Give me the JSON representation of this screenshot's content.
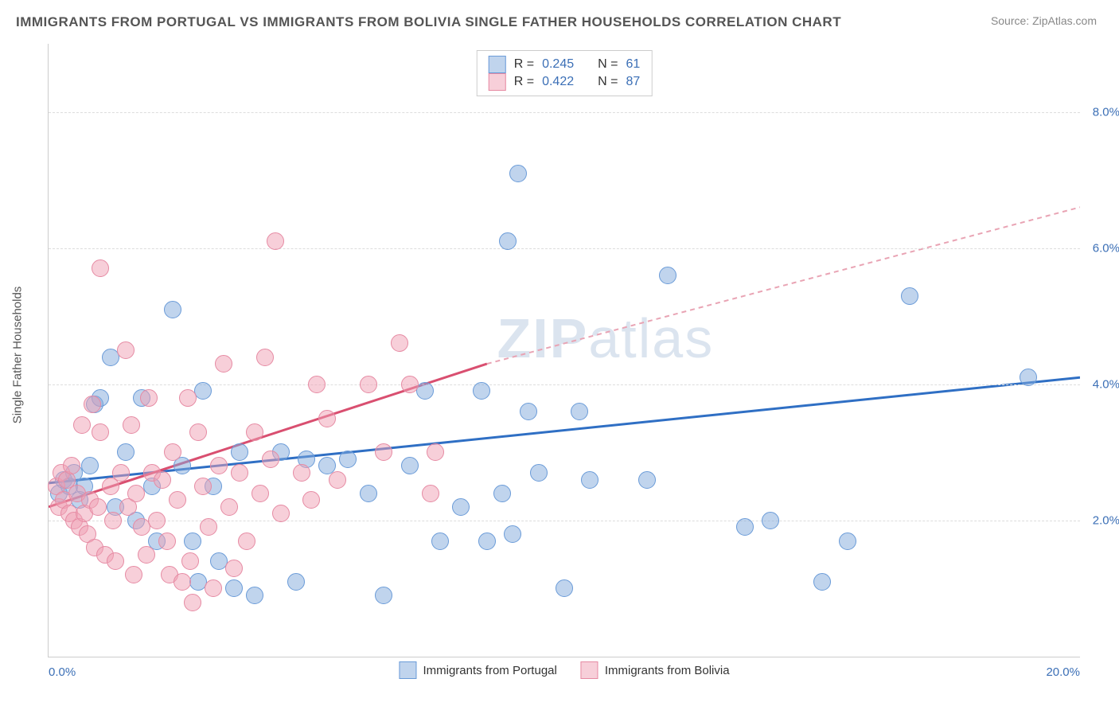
{
  "title": "IMMIGRANTS FROM PORTUGAL VS IMMIGRANTS FROM BOLIVIA SINGLE FATHER HOUSEHOLDS CORRELATION CHART",
  "source_label": "Source: ZipAtlas.com",
  "ylabel": "Single Father Households",
  "watermark_first": "ZIP",
  "watermark_second": "atlas",
  "chart": {
    "type": "scatter",
    "xlim": [
      0,
      20
    ],
    "ylim": [
      0,
      9
    ],
    "x_ticks": [
      {
        "v": 0,
        "label": "0.0%"
      },
      {
        "v": 20,
        "label": "20.0%"
      }
    ],
    "y_ticks": [
      {
        "v": 2,
        "label": "2.0%"
      },
      {
        "v": 4,
        "label": "4.0%"
      },
      {
        "v": 6,
        "label": "6.0%"
      },
      {
        "v": 8,
        "label": "8.0%"
      }
    ],
    "grid_color": "#dddddd",
    "background_color": "#ffffff",
    "marker_radius": 10,
    "colors": {
      "blue_fill": "rgba(130,170,220,0.5)",
      "blue_stroke": "#6a9bd8",
      "pink_fill": "rgba(240,160,180,0.5)",
      "pink_stroke": "#e68aa3"
    },
    "series": [
      {
        "name": "Immigrants from Portugal",
        "key": "portugal",
        "color": "blue",
        "R": "0.245",
        "N": "61",
        "trend": {
          "x1": 0,
          "y1": 2.55,
          "x2": 20,
          "y2": 4.1,
          "stroke": "#2f6fc4",
          "width": 3,
          "dash": "none"
        },
        "points": [
          [
            0.2,
            2.4
          ],
          [
            0.3,
            2.6
          ],
          [
            0.4,
            2.5
          ],
          [
            0.5,
            2.7
          ],
          [
            0.6,
            2.3
          ],
          [
            0.7,
            2.5
          ],
          [
            0.8,
            2.8
          ],
          [
            0.9,
            3.7
          ],
          [
            1.0,
            3.8
          ],
          [
            1.2,
            4.4
          ],
          [
            1.3,
            2.2
          ],
          [
            1.5,
            3.0
          ],
          [
            1.7,
            2.0
          ],
          [
            1.8,
            3.8
          ],
          [
            2.0,
            2.5
          ],
          [
            2.1,
            1.7
          ],
          [
            2.4,
            5.1
          ],
          [
            2.6,
            2.8
          ],
          [
            2.8,
            1.7
          ],
          [
            2.9,
            1.1
          ],
          [
            3.0,
            3.9
          ],
          [
            3.2,
            2.5
          ],
          [
            3.3,
            1.4
          ],
          [
            3.6,
            1.0
          ],
          [
            3.7,
            3.0
          ],
          [
            4.0,
            0.9
          ],
          [
            4.5,
            3.0
          ],
          [
            4.8,
            1.1
          ],
          [
            5.0,
            2.9
          ],
          [
            5.4,
            2.8
          ],
          [
            5.8,
            2.9
          ],
          [
            6.2,
            2.4
          ],
          [
            6.5,
            0.9
          ],
          [
            7.0,
            2.8
          ],
          [
            7.3,
            3.9
          ],
          [
            7.6,
            1.7
          ],
          [
            8.0,
            2.2
          ],
          [
            8.4,
            3.9
          ],
          [
            8.5,
            1.7
          ],
          [
            8.8,
            2.4
          ],
          [
            8.9,
            6.1
          ],
          [
            9.0,
            1.8
          ],
          [
            9.1,
            7.1
          ],
          [
            9.3,
            3.6
          ],
          [
            9.5,
            2.7
          ],
          [
            10.0,
            1.0
          ],
          [
            10.3,
            3.6
          ],
          [
            10.5,
            2.6
          ],
          [
            11.6,
            2.6
          ],
          [
            12.0,
            5.6
          ],
          [
            13.5,
            1.9
          ],
          [
            14.0,
            2.0
          ],
          [
            15.0,
            1.1
          ],
          [
            15.5,
            1.7
          ],
          [
            16.7,
            5.3
          ],
          [
            19.0,
            4.1
          ]
        ]
      },
      {
        "name": "Immigrants from Bolivia",
        "key": "bolivia",
        "color": "pink",
        "R": "0.422",
        "N": "87",
        "trend_solid": {
          "x1": 0,
          "y1": 2.2,
          "x2": 8.5,
          "y2": 4.3,
          "stroke": "#d94f70",
          "width": 3
        },
        "trend_dash": {
          "x1": 8.5,
          "y1": 4.3,
          "x2": 20,
          "y2": 6.6,
          "stroke": "#e9a4b4",
          "width": 2,
          "dash": "6 5"
        },
        "points": [
          [
            0.15,
            2.5
          ],
          [
            0.2,
            2.2
          ],
          [
            0.25,
            2.7
          ],
          [
            0.3,
            2.3
          ],
          [
            0.35,
            2.6
          ],
          [
            0.4,
            2.1
          ],
          [
            0.45,
            2.8
          ],
          [
            0.5,
            2.0
          ],
          [
            0.55,
            2.4
          ],
          [
            0.6,
            1.9
          ],
          [
            0.65,
            3.4
          ],
          [
            0.7,
            2.1
          ],
          [
            0.75,
            1.8
          ],
          [
            0.8,
            2.3
          ],
          [
            0.85,
            3.7
          ],
          [
            0.9,
            1.6
          ],
          [
            0.95,
            2.2
          ],
          [
            1.0,
            3.3
          ],
          [
            1.0,
            5.7
          ],
          [
            1.1,
            1.5
          ],
          [
            1.2,
            2.5
          ],
          [
            1.25,
            2.0
          ],
          [
            1.3,
            1.4
          ],
          [
            1.4,
            2.7
          ],
          [
            1.5,
            4.5
          ],
          [
            1.55,
            2.2
          ],
          [
            1.6,
            3.4
          ],
          [
            1.65,
            1.2
          ],
          [
            1.7,
            2.4
          ],
          [
            1.8,
            1.9
          ],
          [
            1.9,
            1.5
          ],
          [
            1.95,
            3.8
          ],
          [
            2.0,
            2.7
          ],
          [
            2.1,
            2.0
          ],
          [
            2.2,
            2.6
          ],
          [
            2.3,
            1.7
          ],
          [
            2.35,
            1.2
          ],
          [
            2.4,
            3.0
          ],
          [
            2.5,
            2.3
          ],
          [
            2.6,
            1.1
          ],
          [
            2.7,
            3.8
          ],
          [
            2.75,
            1.4
          ],
          [
            2.8,
            0.8
          ],
          [
            2.9,
            3.3
          ],
          [
            3.0,
            2.5
          ],
          [
            3.1,
            1.9
          ],
          [
            3.2,
            1.0
          ],
          [
            3.3,
            2.8
          ],
          [
            3.4,
            4.3
          ],
          [
            3.5,
            2.2
          ],
          [
            3.6,
            1.3
          ],
          [
            3.7,
            2.7
          ],
          [
            3.85,
            1.7
          ],
          [
            4.0,
            3.3
          ],
          [
            4.1,
            2.4
          ],
          [
            4.2,
            4.4
          ],
          [
            4.3,
            2.9
          ],
          [
            4.4,
            6.1
          ],
          [
            4.5,
            2.1
          ],
          [
            4.9,
            2.7
          ],
          [
            5.1,
            2.3
          ],
          [
            5.2,
            4.0
          ],
          [
            5.4,
            3.5
          ],
          [
            5.6,
            2.6
          ],
          [
            6.2,
            4.0
          ],
          [
            6.5,
            3.0
          ],
          [
            6.8,
            4.6
          ],
          [
            7.0,
            4.0
          ],
          [
            7.4,
            2.4
          ],
          [
            7.5,
            3.0
          ]
        ]
      }
    ]
  },
  "legend_top": {
    "rows": [
      {
        "color": "blue",
        "r_label": "R =",
        "r_val": "0.245",
        "n_label": "N =",
        "n_val": "61"
      },
      {
        "color": "pink",
        "r_label": "R =",
        "r_val": "0.422",
        "n_label": "N =",
        "n_val": "87"
      }
    ]
  },
  "legend_bottom": [
    {
      "color": "blue",
      "label": "Immigrants from Portugal"
    },
    {
      "color": "pink",
      "label": "Immigrants from Bolivia"
    }
  ]
}
